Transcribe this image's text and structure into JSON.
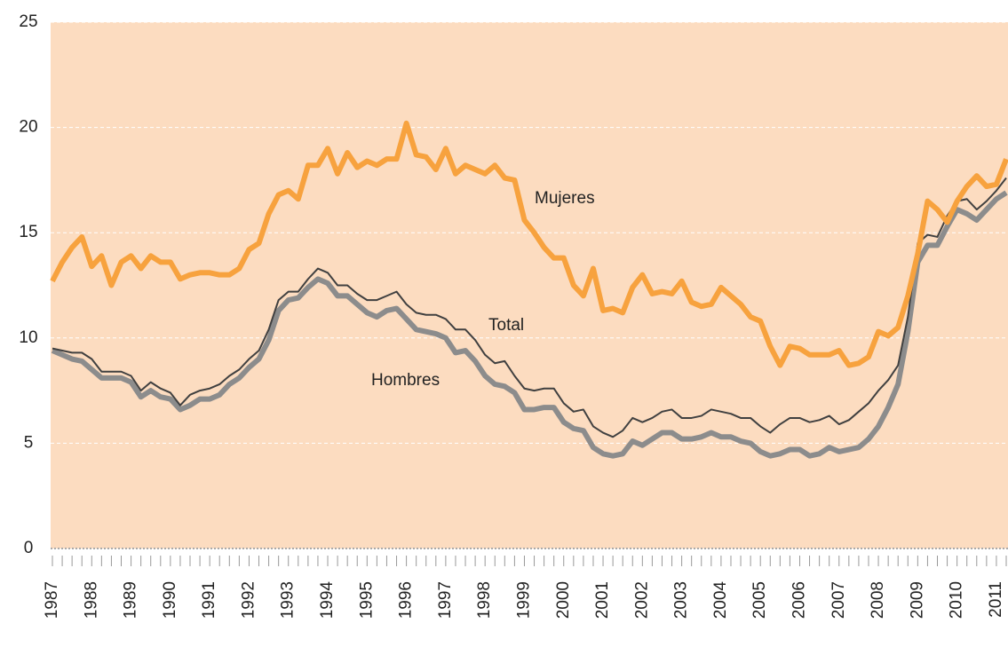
{
  "chart_data": {
    "type": "line",
    "categories": [
      "1987",
      null,
      null,
      null,
      "1988",
      null,
      null,
      null,
      "1989",
      null,
      null,
      null,
      "1990",
      null,
      null,
      null,
      "1991",
      null,
      null,
      null,
      "1992",
      null,
      null,
      null,
      "1993",
      null,
      null,
      null,
      "1994",
      null,
      null,
      null,
      "1995",
      null,
      null,
      null,
      "1996",
      null,
      null,
      null,
      "1997",
      null,
      null,
      null,
      "1998",
      null,
      null,
      null,
      "1999",
      null,
      null,
      null,
      "2000",
      null,
      null,
      null,
      "2001",
      null,
      null,
      null,
      "2002",
      null,
      null,
      null,
      "2003",
      null,
      null,
      null,
      "2004",
      null,
      null,
      null,
      "2005",
      null,
      null,
      null,
      "2006",
      null,
      null,
      null,
      "2007",
      null,
      null,
      null,
      "2008",
      null,
      null,
      null,
      "2009",
      null,
      null,
      null,
      "2010",
      null,
      null,
      null,
      "2011",
      null
    ],
    "series": [
      {
        "name": "Mujeres",
        "color": "#f7a23e",
        "values": [
          12.7,
          13.6,
          14.3,
          14.8,
          13.4,
          13.9,
          12.5,
          13.6,
          13.9,
          13.3,
          13.9,
          13.6,
          13.6,
          12.8,
          13.0,
          13.1,
          13.1,
          13.0,
          13.0,
          13.3,
          14.2,
          14.5,
          15.9,
          16.8,
          17.0,
          16.6,
          18.2,
          18.2,
          19.0,
          17.8,
          18.8,
          18.1,
          18.4,
          18.2,
          18.5,
          18.5,
          20.2,
          18.7,
          18.6,
          18.0,
          19.0,
          17.8,
          18.2,
          18.0,
          17.8,
          18.2,
          17.6,
          17.5,
          15.6,
          15.0,
          14.3,
          13.8,
          13.8,
          12.5,
          12.0,
          13.3,
          11.3,
          11.4,
          11.2,
          12.4,
          13.0,
          12.1,
          12.2,
          12.1,
          12.7,
          11.7,
          11.5,
          11.6,
          12.4,
          12.0,
          11.6,
          11.0,
          10.8,
          9.6,
          8.7,
          9.6,
          9.5,
          9.2,
          9.2,
          9.2,
          9.4,
          8.7,
          8.8,
          9.1,
          10.3,
          10.1,
          10.5,
          12.0,
          14.0,
          16.5,
          16.1,
          15.5,
          16.5,
          17.2,
          17.7,
          17.2,
          17.3,
          18.5
        ]
      },
      {
        "name": "Total",
        "color": "#404040",
        "values": [
          9.5,
          9.4,
          9.3,
          9.3,
          9.0,
          8.4,
          8.4,
          8.4,
          8.2,
          7.5,
          7.9,
          7.6,
          7.4,
          6.8,
          7.3,
          7.5,
          7.6,
          7.8,
          8.2,
          8.5,
          9.0,
          9.4,
          10.4,
          11.8,
          12.2,
          12.2,
          12.8,
          13.3,
          13.1,
          12.5,
          12.5,
          12.1,
          11.8,
          11.8,
          12.0,
          12.2,
          11.6,
          11.2,
          11.1,
          11.1,
          10.9,
          10.4,
          10.4,
          9.9,
          9.2,
          8.8,
          8.9,
          8.2,
          7.6,
          7.5,
          7.6,
          7.6,
          6.9,
          6.5,
          6.6,
          5.8,
          5.5,
          5.3,
          5.6,
          6.2,
          6.0,
          6.2,
          6.5,
          6.6,
          6.2,
          6.2,
          6.3,
          6.6,
          6.5,
          6.4,
          6.2,
          6.2,
          5.8,
          5.5,
          5.9,
          6.2,
          6.2,
          6.0,
          6.1,
          6.3,
          5.9,
          6.1,
          6.5,
          6.9,
          7.5,
          8.0,
          8.7,
          11.0,
          14.5,
          14.9,
          14.8,
          15.8,
          16.5,
          16.6,
          16.1,
          16.5,
          17.0,
          17.6
        ]
      },
      {
        "name": "Hombres",
        "color": "#8c8c8c",
        "values": [
          9.4,
          9.2,
          9.0,
          8.9,
          8.5,
          8.1,
          8.1,
          8.1,
          7.9,
          7.2,
          7.5,
          7.2,
          7.1,
          6.6,
          6.8,
          7.1,
          7.1,
          7.3,
          7.8,
          8.1,
          8.6,
          9.0,
          9.9,
          11.3,
          11.8,
          11.9,
          12.4,
          12.8,
          12.6,
          12.0,
          12.0,
          11.6,
          11.2,
          11.0,
          11.3,
          11.4,
          10.9,
          10.4,
          10.3,
          10.2,
          10.0,
          9.3,
          9.4,
          8.9,
          8.2,
          7.8,
          7.7,
          7.4,
          6.6,
          6.6,
          6.7,
          6.7,
          6.0,
          5.7,
          5.6,
          4.8,
          4.5,
          4.4,
          4.5,
          5.1,
          4.9,
          5.2,
          5.5,
          5.5,
          5.2,
          5.2,
          5.3,
          5.5,
          5.3,
          5.3,
          5.1,
          5.0,
          4.6,
          4.4,
          4.5,
          4.7,
          4.7,
          4.4,
          4.5,
          4.8,
          4.6,
          4.7,
          4.8,
          5.2,
          5.8,
          6.7,
          7.8,
          10.3,
          13.6,
          14.4,
          14.4,
          15.3,
          16.1,
          15.9,
          15.6,
          16.1,
          16.6,
          16.9
        ]
      }
    ],
    "ylim": [
      0,
      25
    ],
    "yticks": [
      0,
      5,
      10,
      15,
      20,
      25
    ],
    "grid": true
  }
}
